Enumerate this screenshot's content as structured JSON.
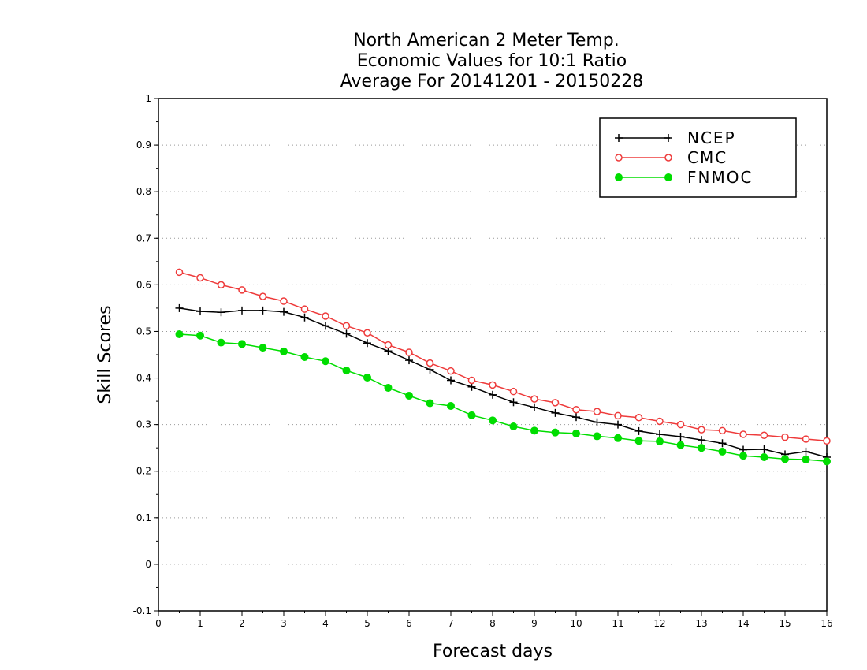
{
  "chart_data": {
    "type": "line",
    "title": [
      "North American 2 Meter Temp.",
      "Economic Values for 10:1 Ratio",
      "Average For 20141201 - 20150228"
    ],
    "xlabel": "Forecast days",
    "ylabel": "Skill Scores",
    "xlim": [
      0,
      16
    ],
    "ylim": [
      -0.1,
      1
    ],
    "xticks": [
      0,
      1,
      2,
      3,
      4,
      5,
      6,
      7,
      8,
      9,
      10,
      11,
      12,
      13,
      14,
      15,
      16
    ],
    "yticks": [
      -0.1,
      0,
      0.1,
      0.2,
      0.3,
      0.4,
      0.5,
      0.6,
      0.7,
      0.8,
      0.9,
      1
    ],
    "ytick_labels": [
      "-0.1",
      "0",
      "0.1",
      "0.2",
      "0.3",
      "0.4",
      "0.5",
      "0.6",
      "0.7",
      "0.8",
      "0.9",
      "1"
    ],
    "grid": "horizontal dotted",
    "legend_position": "top-right",
    "x": [
      0.5,
      1,
      1.5,
      2,
      2.5,
      3,
      3.5,
      4,
      4.5,
      5,
      5.5,
      6,
      6.5,
      7,
      7.5,
      8,
      8.5,
      9,
      9.5,
      10,
      10.5,
      11,
      11.5,
      12,
      12.5,
      13,
      13.5,
      14,
      14.5,
      15,
      15.5,
      16
    ],
    "series": [
      {
        "name": "NCEP",
        "color": "#000000",
        "marker": "plus",
        "values": [
          0.55,
          0.543,
          0.541,
          0.545,
          0.545,
          0.542,
          0.53,
          0.512,
          0.495,
          0.475,
          0.458,
          0.438,
          0.418,
          0.395,
          0.381,
          0.364,
          0.348,
          0.337,
          0.325,
          0.316,
          0.305,
          0.3,
          0.286,
          0.279,
          0.274,
          0.267,
          0.26,
          0.246,
          0.247,
          0.236,
          0.242,
          0.23
        ]
      },
      {
        "name": "CMC",
        "color": "#ee3b3b",
        "marker": "open-circle",
        "values": [
          0.627,
          0.615,
          0.6,
          0.589,
          0.575,
          0.565,
          0.548,
          0.533,
          0.512,
          0.497,
          0.471,
          0.455,
          0.432,
          0.415,
          0.395,
          0.385,
          0.371,
          0.355,
          0.347,
          0.332,
          0.328,
          0.319,
          0.315,
          0.307,
          0.3,
          0.289,
          0.287,
          0.279,
          0.277,
          0.273,
          0.269,
          0.265
        ]
      },
      {
        "name": "FNMOC",
        "color": "#00dd00",
        "marker": "filled-circle",
        "values": [
          0.494,
          0.491,
          0.476,
          0.473,
          0.465,
          0.457,
          0.445,
          0.436,
          0.416,
          0.401,
          0.379,
          0.362,
          0.346,
          0.34,
          0.32,
          0.309,
          0.296,
          0.287,
          0.283,
          0.281,
          0.275,
          0.271,
          0.265,
          0.264,
          0.256,
          0.25,
          0.242,
          0.233,
          0.23,
          0.226,
          0.225,
          0.221
        ]
      }
    ]
  }
}
